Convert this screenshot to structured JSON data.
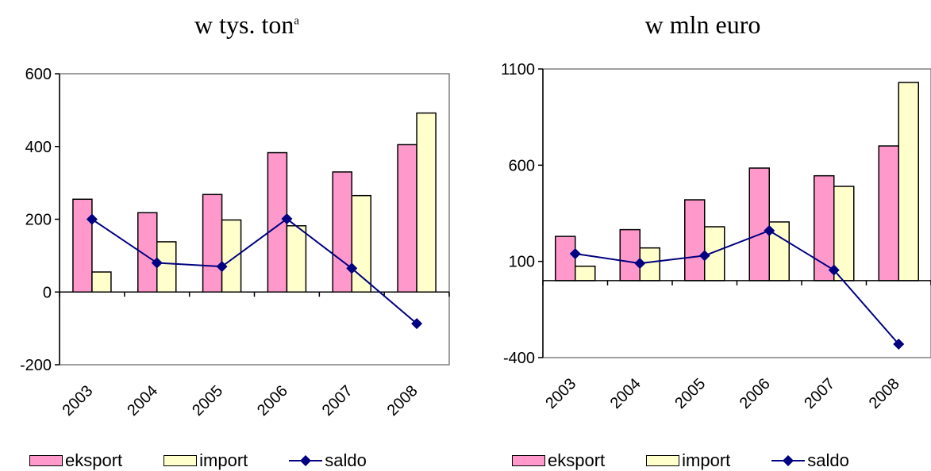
{
  "colors": {
    "eksport": "#ff99cc",
    "import": "#ffffcc",
    "saldo": "#000080",
    "outline": "#000000",
    "plot_border": "#808080"
  },
  "chart_data": [
    {
      "type": "bar",
      "title": "w tys. ton",
      "title_superscript": "a",
      "categories": [
        "2003",
        "2004",
        "2005",
        "2006",
        "2007",
        "2008"
      ],
      "series": [
        {
          "name": "eksport",
          "type": "bar",
          "values": [
            255,
            218,
            268,
            383,
            330,
            405
          ]
        },
        {
          "name": "import",
          "type": "bar",
          "values": [
            55,
            138,
            198,
            182,
            265,
            492
          ]
        },
        {
          "name": "saldo",
          "type": "line",
          "marker": "diamond",
          "values": [
            200,
            80,
            70,
            201,
            65,
            -87
          ]
        }
      ],
      "ylim": [
        -200,
        600
      ],
      "yticks": [
        "-200",
        "0",
        "200",
        "400",
        "600"
      ],
      "legend_position": "bottom",
      "grid": false
    },
    {
      "type": "bar",
      "title": "w mln euro",
      "categories": [
        "2003",
        "2004",
        "2005",
        "2006",
        "2007",
        "2008"
      ],
      "series": [
        {
          "name": "eksport",
          "type": "bar",
          "values": [
            230,
            265,
            420,
            585,
            545,
            700
          ]
        },
        {
          "name": "import",
          "type": "bar",
          "values": [
            75,
            170,
            280,
            305,
            490,
            1030
          ]
        },
        {
          "name": "saldo",
          "type": "line",
          "marker": "diamond",
          "values": [
            140,
            90,
            130,
            260,
            55,
            -330
          ]
        }
      ],
      "ylim": [
        -400,
        1100
      ],
      "yticks": [
        "-400",
        "100",
        "600",
        "1100"
      ],
      "legend_position": "bottom",
      "grid": false
    }
  ]
}
